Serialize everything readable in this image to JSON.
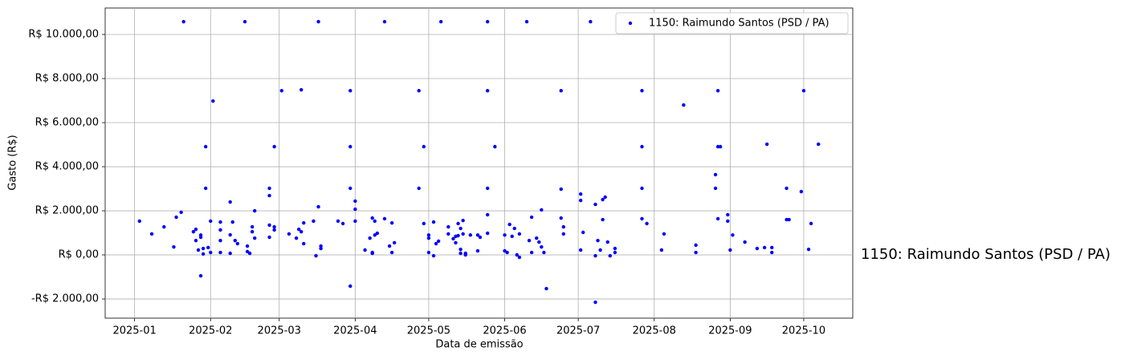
{
  "chart_data": {
    "type": "scatter",
    "xlabel": "Data de emissão",
    "ylabel": "Gasto (R$)",
    "annotation": "1150: Raimundo Santos (PSD / PA)",
    "xlim": [
      "2024-12-20",
      "2025-10-21"
    ],
    "ylim": [
      -2870,
      11200
    ],
    "grid": true,
    "legend": "upper right",
    "xticks": [
      {
        "value": "2025-01-01",
        "label": "2025-01"
      },
      {
        "value": "2025-02-01",
        "label": "2025-02"
      },
      {
        "value": "2025-03-01",
        "label": "2025-03"
      },
      {
        "value": "2025-04-01",
        "label": "2025-04"
      },
      {
        "value": "2025-05-01",
        "label": "2025-05"
      },
      {
        "value": "2025-06-01",
        "label": "2025-06"
      },
      {
        "value": "2025-07-01",
        "label": "2025-07"
      },
      {
        "value": "2025-08-01",
        "label": "2025-08"
      },
      {
        "value": "2025-09-01",
        "label": "2025-09"
      },
      {
        "value": "2025-10-01",
        "label": "2025-10"
      }
    ],
    "yticks": [
      {
        "value": -2000,
        "label": "-R$ 2.000,00"
      },
      {
        "value": 0,
        "label": "R$ 0,00"
      },
      {
        "value": 2000,
        "label": "R$ 2.000,00"
      },
      {
        "value": 4000,
        "label": "R$ 4.000,00"
      },
      {
        "value": 6000,
        "label": "R$ 6.000,00"
      },
      {
        "value": 8000,
        "label": "R$ 8.000,00"
      },
      {
        "value": 10000,
        "label": "R$ 10.000,00"
      }
    ],
    "series": [
      {
        "name": "1150: Raimundo Santos (PSD / PA)",
        "color": "#0000ff",
        "x": [
          "2025-01-03",
          "2025-01-08",
          "2025-01-13",
          "2025-01-17",
          "2025-01-18",
          "2025-01-20",
          "2025-01-21",
          "2025-01-25",
          "2025-01-26",
          "2025-01-26",
          "2025-01-27",
          "2025-01-28",
          "2025-01-28",
          "2025-01-28",
          "2025-01-29",
          "2025-01-29",
          "2025-01-30",
          "2025-01-30",
          "2025-01-31",
          "2025-02-01",
          "2025-02-01",
          "2025-02-02",
          "2025-02-05",
          "2025-02-05",
          "2025-02-05",
          "2025-02-05",
          "2025-02-09",
          "2025-02-09",
          "2025-02-09",
          "2025-02-10",
          "2025-02-11",
          "2025-02-12",
          "2025-02-15",
          "2025-02-16",
          "2025-02-16",
          "2025-02-17",
          "2025-02-18",
          "2025-02-18",
          "2025-02-19",
          "2025-02-19",
          "2025-02-25",
          "2025-02-25",
          "2025-02-25",
          "2025-02-25",
          "2025-02-27",
          "2025-02-27",
          "2025-02-27",
          "2025-03-02",
          "2025-03-05",
          "2025-03-08",
          "2025-03-09",
          "2025-03-10",
          "2025-03-10",
          "2025-03-11",
          "2025-03-11",
          "2025-03-15",
          "2025-03-16",
          "2025-03-17",
          "2025-03-17",
          "2025-03-18",
          "2025-03-18",
          "2025-03-25",
          "2025-03-27",
          "2025-03-30",
          "2025-03-30",
          "2025-03-30",
          "2025-03-30",
          "2025-04-01",
          "2025-04-01",
          "2025-04-01",
          "2025-04-05",
          "2025-04-07",
          "2025-04-08",
          "2025-04-08",
          "2025-04-08",
          "2025-04-09",
          "2025-04-09",
          "2025-04-10",
          "2025-04-13",
          "2025-04-13",
          "2025-04-15",
          "2025-04-16",
          "2025-04-16",
          "2025-04-17",
          "2025-04-27",
          "2025-04-27",
          "2025-04-29",
          "2025-04-29",
          "2025-05-01",
          "2025-05-01",
          "2025-05-01",
          "2025-05-03",
          "2025-05-03",
          "2025-05-04",
          "2025-05-05",
          "2025-05-06",
          "2025-05-09",
          "2025-05-09",
          "2025-05-11",
          "2025-05-12",
          "2025-05-12",
          "2025-05-13",
          "2025-05-13",
          "2025-05-14",
          "2025-05-14",
          "2025-05-14",
          "2025-05-15",
          "2025-05-15",
          "2025-05-16",
          "2025-05-16",
          "2025-05-18",
          "2025-05-21",
          "2025-05-21",
          "2025-05-22",
          "2025-05-25",
          "2025-05-25",
          "2025-05-25",
          "2025-05-25",
          "2025-05-25",
          "2025-05-28",
          "2025-06-01",
          "2025-06-01",
          "2025-06-02",
          "2025-06-03",
          "2025-06-04",
          "2025-06-05",
          "2025-06-06",
          "2025-06-07",
          "2025-06-07",
          "2025-06-10",
          "2025-06-11",
          "2025-06-12",
          "2025-06-12",
          "2025-06-14",
          "2025-06-15",
          "2025-06-16",
          "2025-06-16",
          "2025-06-17",
          "2025-06-18",
          "2025-06-24",
          "2025-06-24",
          "2025-06-24",
          "2025-06-25",
          "2025-06-25",
          "2025-07-02",
          "2025-07-02",
          "2025-07-02",
          "2025-07-03",
          "2025-07-06",
          "2025-07-08",
          "2025-07-08",
          "2025-07-08",
          "2025-07-09",
          "2025-07-10",
          "2025-07-11",
          "2025-07-11",
          "2025-07-12",
          "2025-07-13",
          "2025-07-14",
          "2025-07-16",
          "2025-07-16",
          "2025-07-27",
          "2025-07-27",
          "2025-07-27",
          "2025-07-27",
          "2025-07-29",
          "2025-08-04",
          "2025-08-05",
          "2025-08-13",
          "2025-08-18",
          "2025-08-18",
          "2025-08-26",
          "2025-08-26",
          "2025-08-27",
          "2025-08-27",
          "2025-08-28",
          "2025-08-27",
          "2025-08-31",
          "2025-08-31",
          "2025-09-01",
          "2025-09-02",
          "2025-09-07",
          "2025-09-12",
          "2025-09-15",
          "2025-09-16",
          "2025-09-18",
          "2025-09-18",
          "2025-09-24",
          "2025-09-24",
          "2025-09-25",
          "2025-09-30",
          "2025-10-01",
          "2025-10-03",
          "2025-10-04",
          "2025-10-07"
        ],
        "values": [
          1530,
          950,
          1270,
          360,
          1710,
          1930,
          10580,
          1050,
          650,
          1160,
          220,
          900,
          800,
          -950,
          40,
          290,
          4910,
          3020,
          330,
          1530,
          110,
          6980,
          650,
          1130,
          1490,
          110,
          2400,
          910,
          70,
          1490,
          650,
          510,
          10580,
          400,
          150,
          70,
          1050,
          1270,
          2000,
          760,
          3020,
          2690,
          1350,
          800,
          4910,
          1130,
          1270,
          7450,
          950,
          760,
          1160,
          1050,
          7490,
          1450,
          510,
          1530,
          -40,
          10580,
          2180,
          400,
          290,
          1530,
          1420,
          7450,
          4910,
          3020,
          -1420,
          2070,
          2440,
          1530,
          220,
          760,
          110,
          70,
          1670,
          900,
          1530,
          980,
          10580,
          1640,
          400,
          110,
          1450,
          550,
          7450,
          3020,
          4910,
          1420,
          900,
          760,
          110,
          -40,
          1490,
          510,
          620,
          10580,
          1270,
          950,
          730,
          550,
          840,
          870,
          1420,
          1200,
          250,
          70,
          1560,
          950,
          70,
          0,
          900,
          900,
          180,
          800,
          10580,
          7450,
          3020,
          1820,
          980,
          4910,
          900,
          180,
          110,
          1380,
          840,
          1200,
          0,
          -110,
          950,
          10580,
          650,
          110,
          1710,
          760,
          580,
          2040,
          360,
          110,
          -1530,
          2980,
          7450,
          1670,
          1270,
          950,
          220,
          2760,
          2470,
          1020,
          10580,
          2290,
          -2150,
          -40,
          650,
          220,
          2510,
          1600,
          2620,
          580,
          -40,
          110,
          290,
          7450,
          4910,
          3020,
          1640,
          1420,
          220,
          950,
          6800,
          440,
          110,
          3640,
          3020,
          7450,
          4910,
          4910,
          1640,
          1820,
          1530,
          220,
          900,
          580,
          290,
          330,
          5020,
          330,
          110,
          3020,
          1600,
          1600,
          2870,
          7450,
          250,
          1420,
          5020
        ]
      }
    ]
  }
}
